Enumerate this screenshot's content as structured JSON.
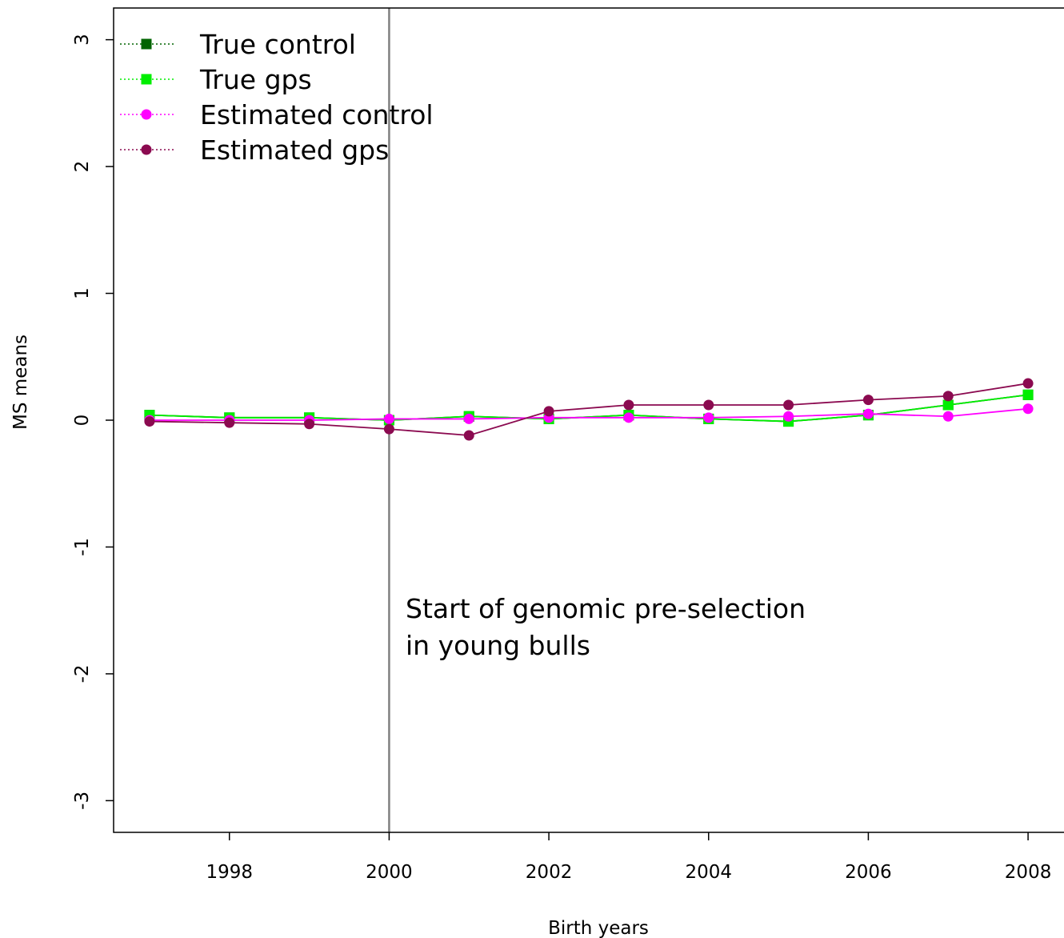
{
  "chart_data": {
    "type": "line",
    "title": "",
    "xlabel": "Birth years",
    "ylabel": "MS means",
    "xlim": [
      1996.55,
      2008.45
    ],
    "ylim": [
      -3.25,
      3.25
    ],
    "x_ticks": [
      1998,
      2000,
      2002,
      2004,
      2006,
      2008
    ],
    "x_tick_labels": [
      "1998",
      "2000",
      "2002",
      "2004",
      "2006",
      "2008"
    ],
    "y_ticks": [
      3,
      2,
      1,
      0,
      -1,
      -2,
      -3
    ],
    "y_tick_labels": [
      "3",
      "2",
      "1",
      "0",
      "-1",
      "-2",
      "-3"
    ],
    "grid": false,
    "legend_position": "top-left",
    "x": [
      1997,
      1998,
      1999,
      2000,
      2001,
      2002,
      2003,
      2004,
      2005,
      2006,
      2007,
      2008
    ],
    "series": [
      {
        "name": "True control",
        "color": "#006400",
        "marker": "square",
        "values": [
          0.04,
          0.02,
          0.02,
          0.0,
          0.03,
          0.01,
          0.04,
          0.01,
          -0.01,
          0.04,
          0.12,
          0.2
        ]
      },
      {
        "name": "True gps",
        "color": "#00ee00",
        "marker": "square",
        "values": [
          0.04,
          0.02,
          0.02,
          0.0,
          0.03,
          0.01,
          0.04,
          0.01,
          -0.01,
          0.04,
          0.12,
          0.2
        ]
      },
      {
        "name": "Estimated control",
        "color": "#ff00ff",
        "marker": "circle",
        "values": [
          0.0,
          0.0,
          0.0,
          0.01,
          0.01,
          0.02,
          0.02,
          0.02,
          0.03,
          0.05,
          0.03,
          0.09
        ]
      },
      {
        "name": "Estimated gps",
        "color": "#8b0a50",
        "marker": "circle",
        "values": [
          -0.01,
          -0.02,
          -0.03,
          -0.07,
          -0.12,
          0.07,
          0.12,
          0.12,
          0.12,
          0.16,
          0.19,
          0.29
        ]
      }
    ],
    "vertical_line": {
      "x": 2000,
      "color": "#808080"
    },
    "annotation": [
      "Start of genomic pre-selection",
      "in young bulls"
    ]
  }
}
